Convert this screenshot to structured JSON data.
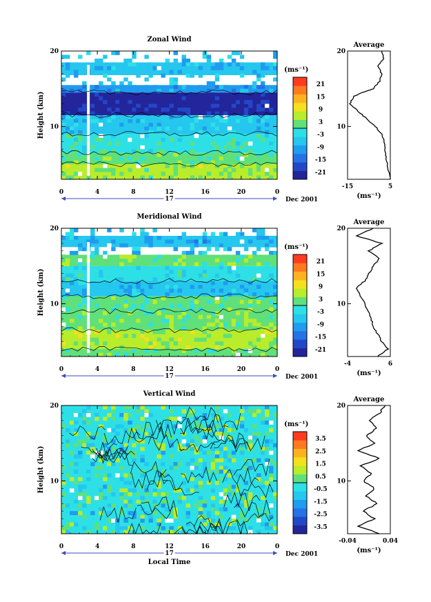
{
  "colors": {
    "warm_scale": [
      "#ff3b1f",
      "#ff7a1f",
      "#ffb21f",
      "#f3e01f",
      "#b9ec2a",
      "#5fe07a"
    ],
    "cool_scale": [
      "#2de0e6",
      "#25c7ee",
      "#1f9cef",
      "#2672e6",
      "#2247c8",
      "#23259a"
    ],
    "missing": "#ffffff",
    "contour": "#000000",
    "time_axis_blue": "#3b4bb8"
  },
  "chart_data": [
    {
      "type": "heatmap",
      "title": "Zonal Wind",
      "xlabel": "",
      "ylabel": "Height (km)",
      "xlim": [
        0,
        24
      ],
      "ylim": [
        3,
        20
      ],
      "x_ticks": [
        "0",
        "4",
        "8",
        "12",
        "16",
        "20",
        "0"
      ],
      "y_ticks": [
        "10",
        "20"
      ],
      "date_label": "Dec 2001",
      "day_label": "17",
      "colorbar": {
        "unit_label": "(ms⁻¹)",
        "levels": [
          "21",
          "15",
          "9",
          "3",
          "-3",
          "-9",
          "-15",
          "-21"
        ],
        "range": [
          -24,
          24
        ]
      },
      "bands": [
        {
          "y0": 3,
          "y1": 5,
          "value": 4
        },
        {
          "y0": 5,
          "y1": 6.5,
          "value": 1
        },
        {
          "y0": 6.5,
          "y1": 9,
          "value": -1
        },
        {
          "y0": 9,
          "y1": 11.5,
          "value": -5
        },
        {
          "y0": 11.5,
          "y1": 14.5,
          "value": -21
        },
        {
          "y0": 14.5,
          "y1": 15.5,
          "value": -9
        },
        {
          "y0": 15.5,
          "y1": 16.8,
          "value": null
        },
        {
          "y0": 16.8,
          "y1": 18.5,
          "value": -7
        },
        {
          "y0": 18.5,
          "y1": 20,
          "value": null
        }
      ],
      "profile": {
        "title": "Average",
        "xlim": [
          -15,
          5
        ],
        "x_ticks": [
          "-15",
          "5"
        ],
        "ylim": [
          3,
          20
        ],
        "y_ticks": [
          "10",
          "20"
        ],
        "xlabel": "(ms⁻¹)",
        "points": [
          [
            5,
            3
          ],
          [
            4,
            4.5
          ],
          [
            3,
            6
          ],
          [
            2.5,
            7
          ],
          [
            2,
            8
          ],
          [
            1,
            9
          ],
          [
            -2,
            10
          ],
          [
            -6,
            11
          ],
          [
            -10,
            12
          ],
          [
            -14,
            13
          ],
          [
            -12,
            14
          ],
          [
            -8,
            14.5
          ],
          [
            -3,
            15
          ],
          [
            0,
            16
          ],
          [
            1,
            17
          ],
          [
            -1,
            18
          ],
          [
            2,
            19
          ],
          [
            1,
            20
          ]
        ]
      }
    },
    {
      "type": "heatmap",
      "title": "Meridional Wind",
      "xlabel": "",
      "ylabel": "Height (km)",
      "xlim": [
        0,
        24
      ],
      "ylim": [
        3,
        20
      ],
      "x_ticks": [
        "0",
        "4",
        "8",
        "12",
        "16",
        "20",
        "0"
      ],
      "y_ticks": [
        "10",
        "20"
      ],
      "date_label": "Dec 2001",
      "day_label": "17",
      "colorbar": {
        "unit_label": "(ms⁻¹)",
        "levels": [
          "21",
          "15",
          "9",
          "3",
          "-3",
          "-9",
          "-15",
          "-21"
        ],
        "range": [
          -24,
          24
        ]
      },
      "bands": [
        {
          "y0": 3,
          "y1": 4,
          "value": 2
        },
        {
          "y0": 4,
          "y1": 6.5,
          "value": 5
        },
        {
          "y0": 6.5,
          "y1": 9,
          "value": 3
        },
        {
          "y0": 9,
          "y1": 11,
          "value": 1
        },
        {
          "y0": 11,
          "y1": 13,
          "value": -7
        },
        {
          "y0": 13,
          "y1": 15,
          "value": -3
        },
        {
          "y0": 15,
          "y1": 16.5,
          "value": 3
        },
        {
          "y0": 16.5,
          "y1": 17.5,
          "value": null
        },
        {
          "y0": 17.5,
          "y1": 19,
          "value": -8
        },
        {
          "y0": 19,
          "y1": 20,
          "value": null
        }
      ],
      "profile": {
        "title": "Average",
        "xlim": [
          -4,
          6
        ],
        "x_ticks": [
          "-4",
          "6"
        ],
        "ylim": [
          3,
          20
        ],
        "y_ticks": [
          "10",
          "20"
        ],
        "xlabel": "(ms⁻¹)",
        "points": [
          [
            3,
            3
          ],
          [
            5.5,
            4
          ],
          [
            4,
            5
          ],
          [
            3,
            6
          ],
          [
            2,
            7
          ],
          [
            1.5,
            8
          ],
          [
            1,
            9
          ],
          [
            0,
            10
          ],
          [
            -1,
            11
          ],
          [
            -2,
            12
          ],
          [
            0,
            13
          ],
          [
            1,
            14
          ],
          [
            2,
            15
          ],
          [
            3.5,
            16
          ],
          [
            1,
            17
          ],
          [
            4,
            18
          ],
          [
            -2,
            19
          ],
          [
            2,
            20
          ]
        ]
      }
    },
    {
      "type": "heatmap",
      "title": "Vertical Wind",
      "xlabel": "Local Time",
      "ylabel": "Height (km)",
      "xlim": [
        0,
        24
      ],
      "ylim": [
        3,
        20
      ],
      "x_ticks": [
        "0",
        "4",
        "8",
        "12",
        "16",
        "20",
        "0"
      ],
      "y_ticks": [
        "10",
        "20"
      ],
      "date_label": "Dec 2001",
      "day_label": "17",
      "colorbar": {
        "unit_label": "(ms⁻¹)",
        "levels": [
          "3.5",
          "2.5",
          "1.5",
          "0.5",
          "-0.5",
          "-1.5",
          "-2.5",
          "-3.5"
        ],
        "range": [
          -4,
          4
        ]
      },
      "bands": [
        {
          "y0": 3,
          "y1": 20,
          "value": -0.2
        }
      ],
      "profile": {
        "title": "Average",
        "xlim": [
          -0.04,
          0.04
        ],
        "x_ticks": [
          "-0.04",
          "0.04"
        ],
        "ylim": [
          3,
          20
        ],
        "y_ticks": [
          "10",
          "20"
        ],
        "xlabel": "(ms⁻¹)",
        "points": [
          [
            0.02,
            3
          ],
          [
            -0.02,
            4
          ],
          [
            0.01,
            5
          ],
          [
            -0.01,
            6
          ],
          [
            0.015,
            7
          ],
          [
            -0.005,
            8
          ],
          [
            0.01,
            9
          ],
          [
            -0.01,
            10
          ],
          [
            0.005,
            11
          ],
          [
            -0.015,
            12
          ],
          [
            0.02,
            13
          ],
          [
            -0.02,
            14
          ],
          [
            0.01,
            15
          ],
          [
            -0.005,
            16
          ],
          [
            0.015,
            17
          ],
          [
            0.0,
            18
          ],
          [
            0.02,
            19
          ],
          [
            0.03,
            20
          ]
        ]
      }
    }
  ]
}
